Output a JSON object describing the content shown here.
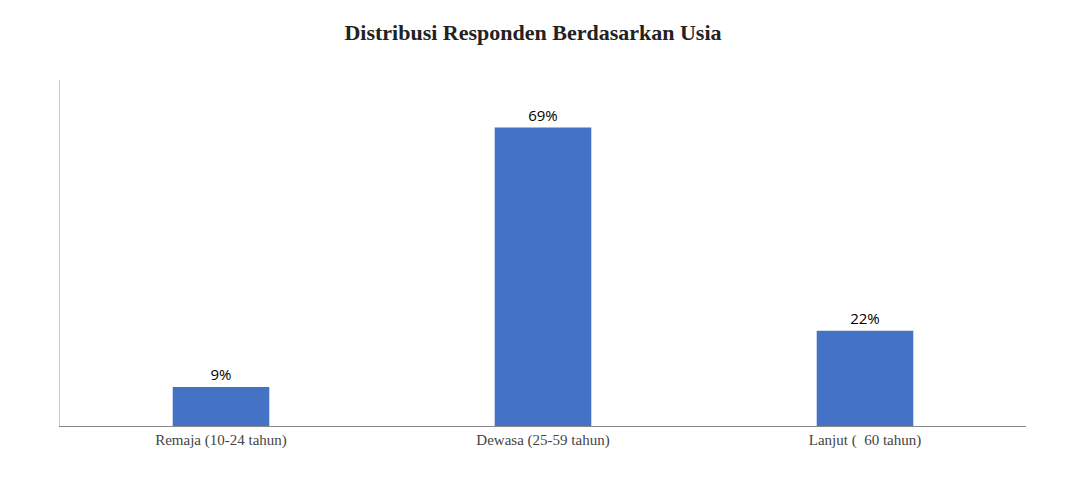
{
  "chart_data": {
    "type": "bar",
    "title": "Distribusi Responden Berdasarkan Usia",
    "categories": [
      "Remaja (10-24 tahun)",
      "Dewasa (25-59 tahun)",
      "Lanjut (  60 tahun)"
    ],
    "values": [
      9,
      69,
      22
    ],
    "value_labels": [
      "9%",
      "69%",
      "22%"
    ],
    "data_labels": true,
    "color": "#4472C4",
    "ylim": [
      0,
      80
    ],
    "tick_labels": "x",
    "grid": false
  }
}
